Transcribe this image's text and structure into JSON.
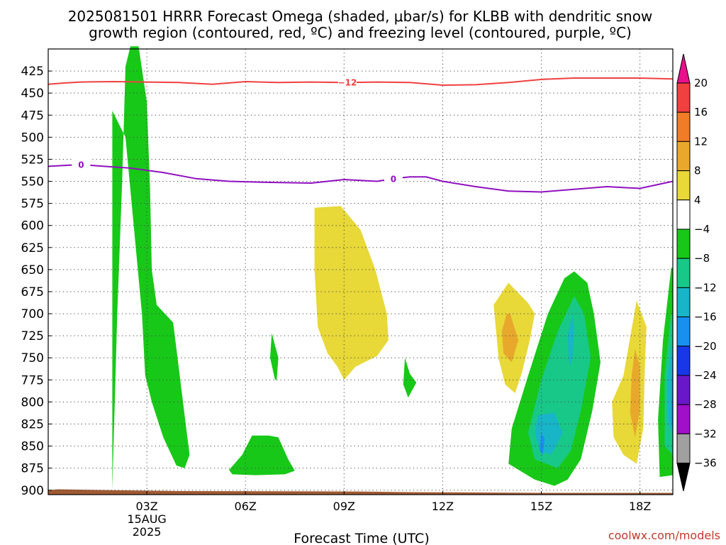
{
  "title": {
    "line1": "2025081501 HRRR Forecast Omega (shaded, μbar/s) for KLBB with dendritic snow",
    "line2": "growth region (contoured, red, ºC) and freezing level (contoured, purple, ºC)"
  },
  "credit": "coolwx.com/models",
  "chart_data": {
    "type": "heatmap",
    "xlabel": "Forecast Time (UTC)",
    "ylabel": "",
    "x_ticks": [
      {
        "hour": 3,
        "label": "03Z",
        "date_line1": "15AUG",
        "date_line2": "2025"
      },
      {
        "hour": 6,
        "label": "06Z"
      },
      {
        "hour": 9,
        "label": "09Z"
      },
      {
        "hour": 12,
        "label": "12Z"
      },
      {
        "hour": 15,
        "label": "15Z"
      },
      {
        "hour": 18,
        "label": "18Z"
      }
    ],
    "x_range_hours": [
      0,
      19
    ],
    "y_range_hpa": [
      400,
      905
    ],
    "y_ticks": [
      425,
      450,
      475,
      500,
      525,
      550,
      575,
      600,
      625,
      650,
      675,
      700,
      725,
      750,
      775,
      800,
      825,
      850,
      875,
      900
    ],
    "grid": true,
    "colorbar": {
      "unit": "μbar/s",
      "labels": [
        "20",
        "16",
        "12",
        "8",
        "4",
        "−4",
        "−8",
        "−12",
        "−16",
        "−20",
        "−24",
        "−28",
        "−32",
        "−36"
      ],
      "bands": [
        {
          "from": 16,
          "to": 20,
          "color": "#f04040"
        },
        {
          "from": 12,
          "to": 16,
          "color": "#f07c28"
        },
        {
          "from": 8,
          "to": 12,
          "color": "#e8a82c"
        },
        {
          "from": 4,
          "to": 8,
          "color": "#e8d838"
        },
        {
          "from": -4,
          "to": 4,
          "color": "#ffffff"
        },
        {
          "from": -8,
          "to": -4,
          "color": "#18c818"
        },
        {
          "from": -12,
          "to": -8,
          "color": "#18c888"
        },
        {
          "from": -16,
          "to": -12,
          "color": "#18b4c8"
        },
        {
          "from": -20,
          "to": -16,
          "color": "#1890f0"
        },
        {
          "from": -24,
          "to": -20,
          "color": "#1838e8"
        },
        {
          "from": -28,
          "to": -24,
          "color": "#6818c8"
        },
        {
          "from": -32,
          "to": -28,
          "color": "#a010c8"
        },
        {
          "from": -36,
          "to": -32,
          "color": "#a0a0a0"
        }
      ],
      "over_color": "#e8108c",
      "under_color": "#000000"
    },
    "contours": [
      {
        "label": "−12",
        "color": "#f04040",
        "label_at_hour": 9.1,
        "points": [
          [
            0,
            440
          ],
          [
            0.5,
            438.5
          ],
          [
            1,
            437.5
          ],
          [
            2,
            437
          ],
          [
            3,
            437.5
          ],
          [
            4,
            438
          ],
          [
            5,
            440
          ],
          [
            6,
            437
          ],
          [
            7,
            438
          ],
          [
            8,
            437.5
          ],
          [
            9,
            438
          ],
          [
            10,
            437.5
          ],
          [
            11,
            438
          ],
          [
            12,
            441
          ],
          [
            13,
            440.5
          ],
          [
            14,
            438
          ],
          [
            15,
            434.5
          ],
          [
            16,
            433
          ],
          [
            17,
            433
          ],
          [
            18,
            433
          ],
          [
            19,
            434
          ]
        ]
      },
      {
        "label": "0",
        "color": "#9010c0",
        "label_at_hour": 1,
        "label2_at_hour": 10.5,
        "points": [
          [
            0,
            533
          ],
          [
            1,
            531
          ],
          [
            1.7,
            533
          ],
          [
            2.5,
            535
          ],
          [
            3.5,
            540
          ],
          [
            4.5,
            547
          ],
          [
            5.5,
            550
          ],
          [
            6.5,
            551
          ],
          [
            8,
            552
          ],
          [
            9,
            548
          ],
          [
            10,
            550
          ],
          [
            10.5,
            547
          ],
          [
            11,
            545
          ],
          [
            11.5,
            545
          ],
          [
            12,
            550
          ],
          [
            13,
            556
          ],
          [
            14,
            561
          ],
          [
            15,
            562
          ],
          [
            16,
            559
          ],
          [
            17,
            556
          ],
          [
            18,
            558
          ],
          [
            19,
            550
          ]
        ]
      }
    ],
    "shaded_regions": [
      {
        "band": -6,
        "points": [
          [
            1.95,
            900
          ],
          [
            2.1,
            700
          ],
          [
            2.25,
            550
          ],
          [
            2.35,
            420
          ],
          [
            2.5,
            397
          ],
          [
            2.75,
            397
          ],
          [
            3.0,
            460
          ],
          [
            3.1,
            560
          ],
          [
            3.15,
            650
          ],
          [
            3.3,
            690
          ],
          [
            3.8,
            710
          ],
          [
            4.0,
            770
          ],
          [
            4.2,
            830
          ],
          [
            4.3,
            860
          ],
          [
            4.15,
            875
          ],
          [
            3.9,
            872
          ],
          [
            3.5,
            840
          ],
          [
            3.15,
            800
          ],
          [
            2.95,
            770
          ],
          [
            2.85,
            700
          ],
          [
            2.35,
            500
          ],
          [
            1.95,
            470
          ]
        ]
      },
      {
        "band": -6,
        "points": [
          [
            6.8,
            722
          ],
          [
            7.0,
            750
          ],
          [
            6.95,
            775
          ],
          [
            6.9,
            775
          ],
          [
            6.75,
            750
          ]
        ]
      },
      {
        "band": -6,
        "points": [
          [
            5.5,
            877
          ],
          [
            5.9,
            860
          ],
          [
            6.2,
            838
          ],
          [
            6.7,
            838
          ],
          [
            7.0,
            840
          ],
          [
            7.3,
            865
          ],
          [
            7.5,
            878
          ],
          [
            7.2,
            882
          ],
          [
            6.3,
            883
          ],
          [
            5.6,
            882
          ]
        ]
      },
      {
        "band": -6,
        "points": [
          [
            10.85,
            750
          ],
          [
            11.0,
            768
          ],
          [
            11.2,
            778
          ],
          [
            10.95,
            795
          ],
          [
            10.8,
            780
          ]
        ]
      },
      {
        "band": 6,
        "points": [
          [
            8.1,
            580
          ],
          [
            8.9,
            578
          ],
          [
            9.5,
            605
          ],
          [
            9.95,
            650
          ],
          [
            10.3,
            700
          ],
          [
            10.35,
            730
          ],
          [
            10.0,
            748
          ],
          [
            9.35,
            760
          ],
          [
            9.0,
            775
          ],
          [
            8.8,
            760
          ],
          [
            8.5,
            745
          ],
          [
            8.2,
            715
          ],
          [
            8.1,
            650
          ]
        ]
      },
      {
        "band": 6,
        "points": [
          [
            14.0,
            665
          ],
          [
            14.6,
            688
          ],
          [
            14.8,
            700
          ],
          [
            14.65,
            730
          ],
          [
            14.4,
            768
          ],
          [
            14.2,
            790
          ],
          [
            13.9,
            780
          ],
          [
            13.7,
            750
          ],
          [
            13.55,
            690
          ]
        ]
      },
      {
        "band": 10,
        "points": [
          [
            13.95,
            700
          ],
          [
            14.05,
            700
          ],
          [
            14.3,
            730
          ],
          [
            14.1,
            755
          ],
          [
            13.85,
            745
          ],
          [
            13.8,
            720
          ]
        ]
      },
      {
        "band": 6,
        "points": [
          [
            17.9,
            685
          ],
          [
            18.2,
            715
          ],
          [
            18.15,
            760
          ],
          [
            18.1,
            830
          ],
          [
            17.9,
            870
          ],
          [
            17.5,
            860
          ],
          [
            17.2,
            840
          ],
          [
            17.15,
            800
          ],
          [
            17.5,
            770
          ]
        ]
      },
      {
        "band": 10,
        "points": [
          [
            17.85,
            740
          ],
          [
            18.0,
            760
          ],
          [
            18.0,
            810
          ],
          [
            17.85,
            840
          ],
          [
            17.7,
            812
          ],
          [
            17.75,
            770
          ]
        ]
      },
      {
        "band": -6,
        "points": [
          [
            16.0,
            652
          ],
          [
            16.4,
            665
          ],
          [
            16.6,
            700
          ],
          [
            16.8,
            755
          ],
          [
            16.55,
            810
          ],
          [
            16.2,
            865
          ],
          [
            15.8,
            888
          ],
          [
            15.4,
            895
          ],
          [
            14.8,
            888
          ],
          [
            14.0,
            870
          ],
          [
            14.1,
            830
          ],
          [
            14.6,
            770
          ],
          [
            15.2,
            700
          ],
          [
            15.7,
            660
          ]
        ]
      },
      {
        "band": -10,
        "points": [
          [
            16.0,
            680
          ],
          [
            16.3,
            700
          ],
          [
            16.5,
            750
          ],
          [
            16.2,
            810
          ],
          [
            15.9,
            855
          ],
          [
            15.5,
            875
          ],
          [
            14.8,
            865
          ],
          [
            14.6,
            835
          ],
          [
            15.0,
            775
          ],
          [
            15.5,
            720
          ]
        ]
      },
      {
        "band": -14,
        "points": [
          [
            14.9,
            815
          ],
          [
            15.4,
            812
          ],
          [
            15.65,
            835
          ],
          [
            15.3,
            860
          ],
          [
            14.95,
            855
          ],
          [
            14.8,
            835
          ]
        ]
      },
      {
        "band": -14,
        "points": [
          [
            15.95,
            700
          ],
          [
            16.0,
            720
          ],
          [
            15.95,
            750
          ],
          [
            15.85,
            760
          ],
          [
            15.8,
            725
          ]
        ]
      },
      {
        "band": -18,
        "points": [
          [
            15.0,
            835
          ],
          [
            15.1,
            842
          ],
          [
            15.05,
            860
          ],
          [
            14.95,
            855
          ]
        ]
      },
      {
        "band": -6,
        "points": [
          [
            18.95,
            648
          ],
          [
            19.0,
            648
          ],
          [
            19.0,
            883
          ],
          [
            18.6,
            885
          ],
          [
            18.55,
            820
          ],
          [
            18.7,
            730
          ]
        ]
      },
      {
        "band": -10,
        "points": [
          [
            18.95,
            700
          ],
          [
            19.0,
            700
          ],
          [
            19.0,
            860
          ],
          [
            18.75,
            850
          ],
          [
            18.75,
            770
          ]
        ]
      },
      {
        "band": -14,
        "points": [
          [
            18.95,
            735
          ],
          [
            19.0,
            740
          ],
          [
            19.0,
            840
          ],
          [
            18.85,
            820
          ],
          [
            18.85,
            770
          ]
        ]
      },
      {
        "band": -18,
        "points": [
          [
            18.98,
            750
          ],
          [
            19.0,
            752
          ],
          [
            19.0,
            835
          ],
          [
            18.95,
            820
          ]
        ]
      }
    ],
    "terrain": {
      "color": "#a05a32",
      "points": [
        [
          0,
          900
        ],
        [
          0.3,
          899
        ],
        [
          2.0,
          900
        ],
        [
          4.0,
          901
        ],
        [
          8.0,
          901.3
        ],
        [
          9.5,
          901.5
        ],
        [
          11.0,
          902.2
        ],
        [
          15.0,
          903
        ],
        [
          19.0,
          903
        ]
      ]
    }
  }
}
